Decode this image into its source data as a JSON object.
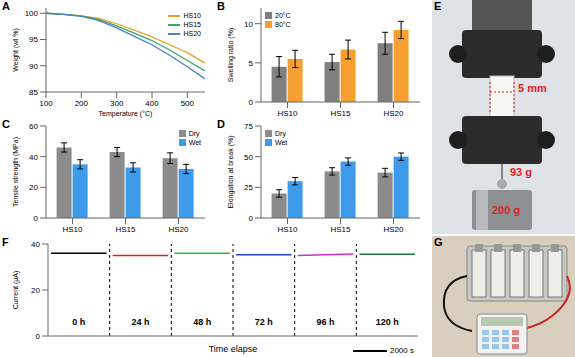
{
  "chart_data": [
    {
      "panel": "A",
      "type": "line",
      "x_label": "Temperature (°C)",
      "y_label": "Weight (wt %)",
      "x": [
        100,
        150,
        200,
        250,
        300,
        350,
        400,
        450,
        500,
        550
      ],
      "xlim": [
        100,
        550
      ],
      "xticks": [
        100,
        200,
        300,
        400,
        500
      ],
      "ylim": [
        85,
        101
      ],
      "yticks": [
        85,
        90,
        95,
        100
      ],
      "legend": "upper right",
      "series": [
        {
          "name": "HS10",
          "color": "#e8a32e",
          "values": [
            100,
            99.8,
            99.5,
            99,
            98,
            96.8,
            95.5,
            94,
            92.5,
            90.5
          ]
        },
        {
          "name": "HS15",
          "color": "#3aa86a",
          "values": [
            100,
            99.8,
            99.5,
            98.8,
            97.6,
            96.2,
            94.8,
            93,
            91,
            89
          ]
        },
        {
          "name": "HS20",
          "color": "#4a7fd0",
          "values": [
            100,
            99.8,
            99.4,
            98.6,
            97.2,
            95.6,
            94,
            92,
            89.8,
            87.5
          ]
        }
      ]
    },
    {
      "panel": "B",
      "type": "bar",
      "y_label": "Swelling ratio (%)",
      "categories": [
        "HS10",
        "HS15",
        "HS20"
      ],
      "ylim": [
        0,
        12
      ],
      "yticks": [
        0,
        5,
        10
      ],
      "legend": "upper left",
      "series": [
        {
          "name": "20°C",
          "color": "#808080",
          "values": [
            4.5,
            5.1,
            7.5
          ],
          "errors": [
            1.3,
            1.0,
            1.4
          ]
        },
        {
          "name": "80°C",
          "color": "#f5a030",
          "values": [
            5.5,
            6.7,
            9.2
          ],
          "errors": [
            1.1,
            1.2,
            1.1
          ]
        }
      ]
    },
    {
      "panel": "C",
      "type": "bar",
      "y_label": "Tensile strength (MPa)",
      "categories": [
        "HS10",
        "HS15",
        "HS20"
      ],
      "ylim": [
        0,
        60
      ],
      "yticks": [
        0,
        20,
        40,
        60
      ],
      "legend": "upper right",
      "series": [
        {
          "name": "Dry",
          "color": "#8c8c8c",
          "values": [
            46,
            43,
            39
          ],
          "errors": [
            3,
            3,
            3.5
          ]
        },
        {
          "name": "Wet",
          "color": "#3d9be9",
          "values": [
            35,
            33,
            32
          ],
          "errors": [
            3,
            3,
            3
          ]
        }
      ]
    },
    {
      "panel": "D",
      "type": "bar",
      "y_label": "Elongation at break (%)",
      "categories": [
        "HS10",
        "HS15",
        "HS20"
      ],
      "ylim": [
        0,
        75
      ],
      "yticks": [
        0,
        25,
        50,
        75
      ],
      "legend": "upper left",
      "series": [
        {
          "name": "Dry",
          "color": "#8c8c8c",
          "values": [
            20,
            38,
            37
          ],
          "errors": [
            3,
            3,
            3.5
          ]
        },
        {
          "name": "Wet",
          "color": "#3d9be9",
          "values": [
            30,
            46,
            50
          ],
          "errors": [
            3,
            3,
            3
          ]
        }
      ]
    },
    {
      "panel": "F",
      "type": "line",
      "x_label": "Time elapse",
      "y_label": "Current (μA)",
      "scale_bar": "2000 s",
      "xlim": [
        0,
        6
      ],
      "ylim": [
        0,
        40
      ],
      "yticks": [
        0,
        20,
        40
      ],
      "tick_labels": "y",
      "series": [
        {
          "name": "0 h",
          "color": "#000000",
          "x": [
            0.05,
            0.95
          ],
          "values": [
            36,
            36
          ]
        },
        {
          "name": "24 h",
          "color": "#e02020",
          "x": [
            1.05,
            1.95
          ],
          "values": [
            35,
            35
          ]
        },
        {
          "name": "48 h",
          "color": "#30c030",
          "x": [
            2.05,
            2.95
          ],
          "values": [
            36,
            36
          ]
        },
        {
          "name": "72 h",
          "color": "#2040c0",
          "x": [
            3.05,
            3.95
          ],
          "values": [
            35.3,
            35.3
          ]
        },
        {
          "name": "96 h",
          "color": "#d030d0",
          "x": [
            4.05,
            4.95
          ],
          "values": [
            35,
            35.6
          ]
        },
        {
          "name": "120 h",
          "color": "#207040",
          "x": [
            5.05,
            5.95
          ],
          "values": [
            35.5,
            35.5
          ]
        }
      ]
    }
  ],
  "photos": {
    "E": {
      "panel": "E",
      "width": "5 mm",
      "clamp_mass": "93 g",
      "weight_mass": "200 g"
    },
    "G": {
      "panel": "G"
    }
  }
}
